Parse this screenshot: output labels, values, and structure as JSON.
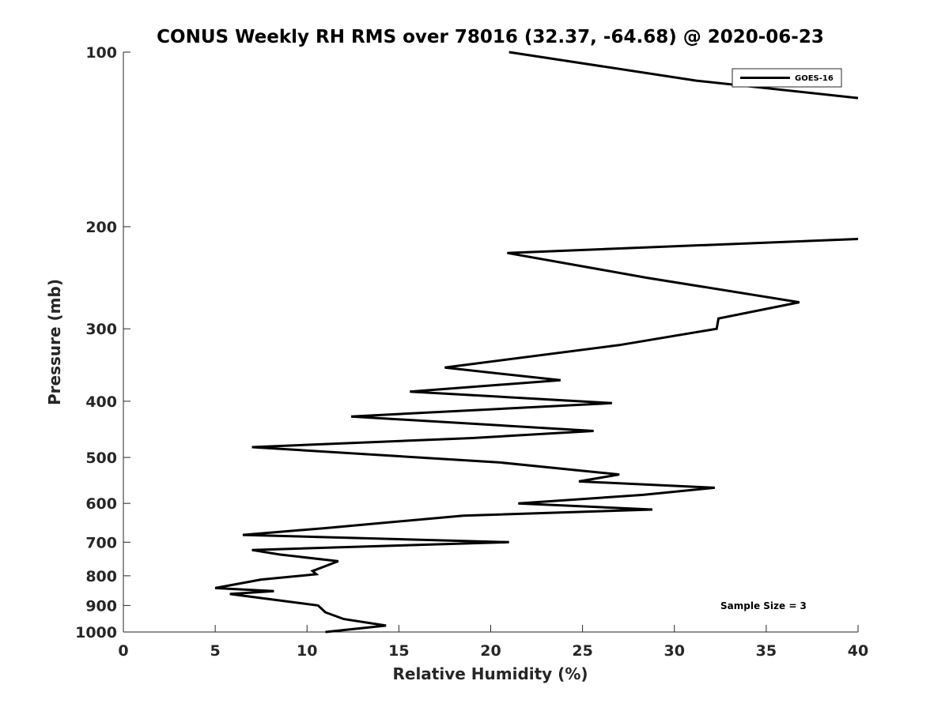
{
  "chart_data": {
    "type": "line",
    "title": "CONUS Weekly RH RMS over 78016 (32.37, -64.68) @ 2020-06-23",
    "xlabel": "Relative Humidity (%)",
    "ylabel": "Pressure (mb)",
    "xlim": [
      0,
      40
    ],
    "ylim": [
      1000,
      100
    ],
    "y_scale": "log",
    "y_reversed": true,
    "grid": false,
    "legend_position": "top-right",
    "xticks": [
      0,
      5,
      10,
      15,
      20,
      25,
      30,
      35,
      40
    ],
    "yticks": [
      100,
      200,
      300,
      400,
      500,
      600,
      700,
      800,
      900,
      1000
    ],
    "annotation": "Sample Size = 3",
    "series": [
      {
        "name": "GOES-16",
        "color": "#000000",
        "x": [
          11.0,
          14.3,
          12.0,
          11.0,
          10.6,
          5.8,
          8.2,
          5.0,
          7.5,
          10.5,
          10.3,
          11.7,
          8.5,
          7.0,
          21.0,
          6.5,
          11.0,
          18.5,
          28.8,
          21.5,
          28.3,
          32.2,
          24.8,
          27.0,
          20.5,
          7.0,
          19.0,
          25.6,
          12.4,
          26.6,
          15.6,
          23.8,
          17.5,
          27.0,
          32.3,
          32.4,
          36.8,
          28.5,
          20.9,
          40.0
        ],
        "y": [
          1000,
          975,
          950,
          925,
          900,
          860,
          850,
          840,
          812,
          795,
          785,
          755,
          735,
          722,
          700,
          680,
          662,
          630,
          615,
          600,
          580,
          564,
          550,
          535,
          510,
          480,
          463,
          450,
          425,
          403,
          385,
          368,
          350,
          320,
          300,
          288,
          270,
          245,
          222,
          210
        ],
        "x_upper": [
          21.0,
          31.2,
          40.0
        ],
        "y_upper": [
          100,
          112,
          120
        ]
      }
    ]
  }
}
